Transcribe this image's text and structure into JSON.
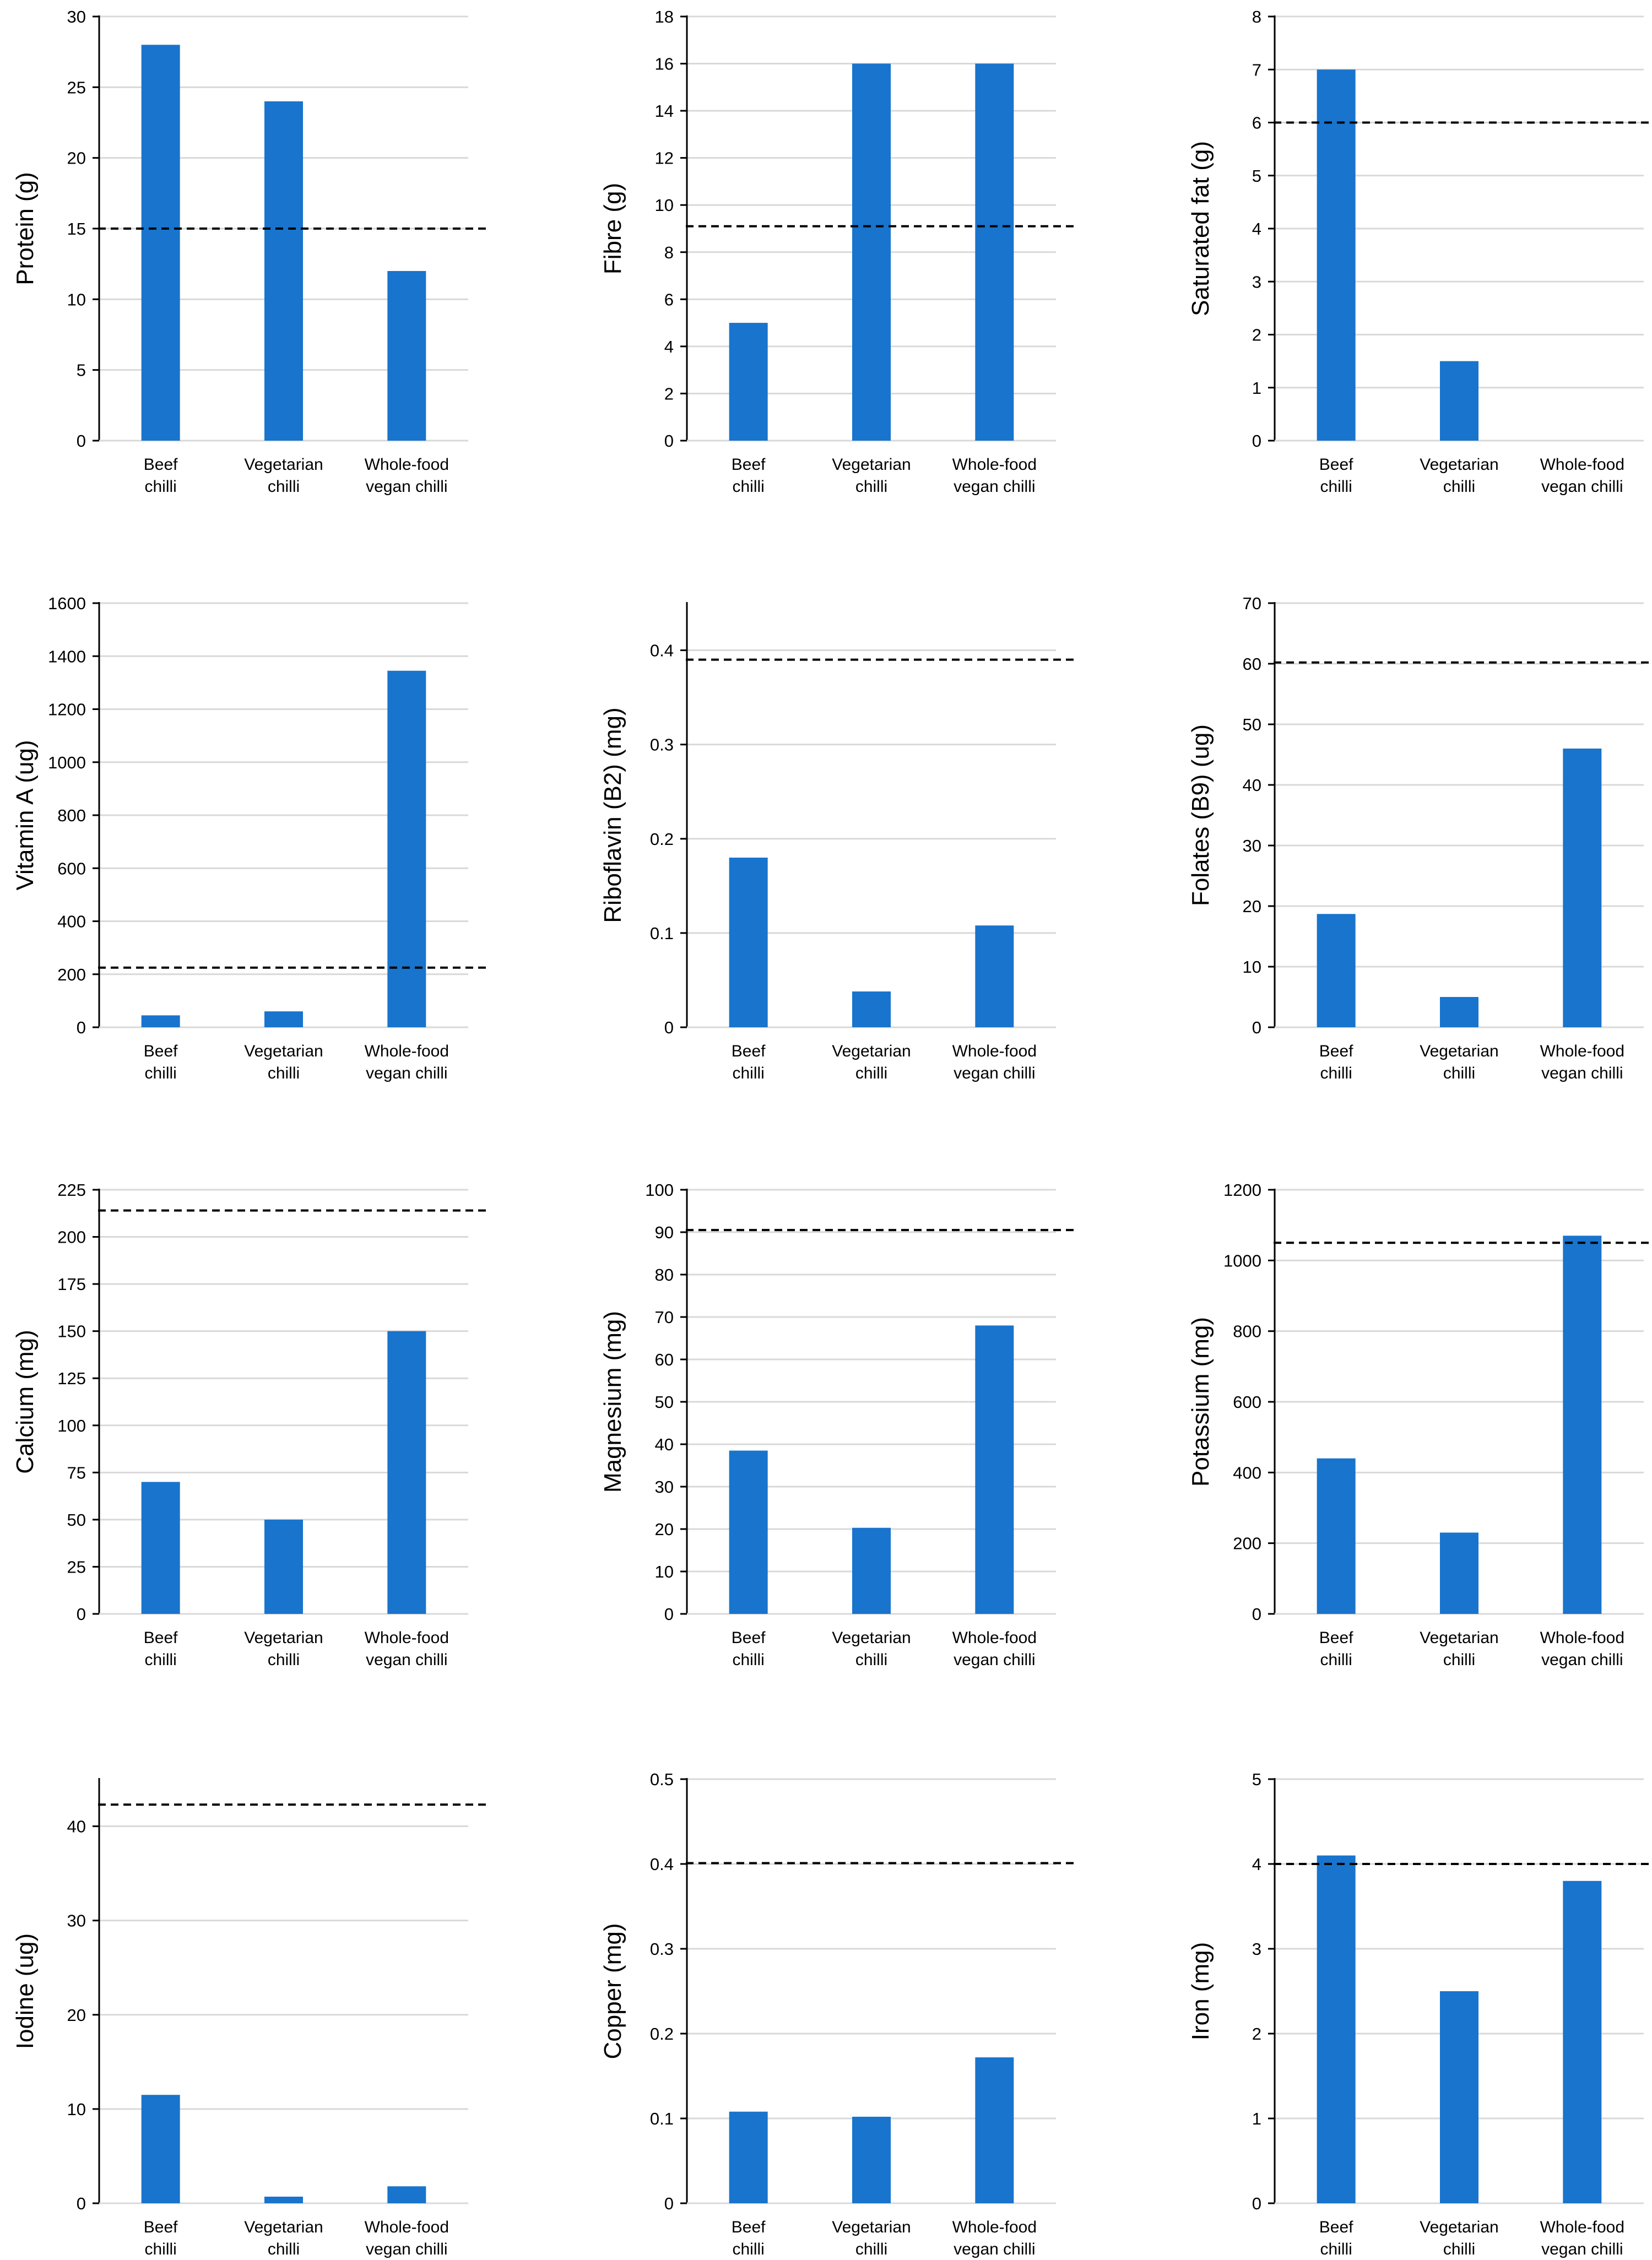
{
  "series_color": "#1874CD",
  "chart_data": [
    {
      "type": "bar",
      "ylabel": "Protein (g)",
      "categories": [
        [
          "Beef",
          "chilli"
        ],
        [
          "Vegetarian",
          "chilli"
        ],
        [
          "Whole-food",
          "vegan chilli"
        ]
      ],
      "values": [
        28,
        24,
        12
      ],
      "ylim": [
        0,
        30
      ],
      "yticks": [
        0,
        5,
        10,
        15,
        20,
        25,
        30
      ],
      "reference": 15
    },
    {
      "type": "bar",
      "ylabel": "Fibre (g)",
      "categories": [
        [
          "Beef",
          "chilli"
        ],
        [
          "Vegetarian",
          "chilli"
        ],
        [
          "Whole-food",
          "vegan chilli"
        ]
      ],
      "values": [
        5,
        16,
        16
      ],
      "ylim": [
        0,
        18
      ],
      "yticks": [
        0,
        2,
        4,
        6,
        8,
        10,
        12,
        14,
        16,
        18
      ],
      "reference": 9.1
    },
    {
      "type": "bar",
      "ylabel": "Saturated fat (g)",
      "categories": [
        [
          "Beef",
          "chilli"
        ],
        [
          "Vegetarian",
          "chilli"
        ],
        [
          "Whole-food",
          "vegan chilli"
        ]
      ],
      "values": [
        7,
        1.5,
        0
      ],
      "ylim": [
        0,
        8
      ],
      "yticks": [
        0,
        1,
        2,
        3,
        4,
        5,
        6,
        7,
        8
      ],
      "reference": 6
    },
    {
      "type": "bar",
      "ylabel": "Vitamin A (ug)",
      "categories": [
        [
          "Beef",
          "chilli"
        ],
        [
          "Vegetarian",
          "chilli"
        ],
        [
          "Whole-food",
          "vegan chilli"
        ]
      ],
      "values": [
        45,
        60,
        1345
      ],
      "ylim": [
        0,
        1600
      ],
      "yticks": [
        0,
        200,
        400,
        600,
        800,
        1000,
        1200,
        1400,
        1600
      ],
      "reference": 225
    },
    {
      "type": "bar",
      "ylabel": "Riboflavin (B2) (mg)",
      "categories": [
        [
          "Beef",
          "chilli"
        ],
        [
          "Vegetarian",
          "chilli"
        ],
        [
          "Whole-food",
          "vegan chilli"
        ]
      ],
      "values": [
        0.18,
        0.038,
        0.108
      ],
      "ylim": [
        0,
        0.45
      ],
      "yticks": [
        0,
        0.1,
        0.2,
        0.3,
        0.4
      ],
      "reference": 0.39
    },
    {
      "type": "bar",
      "ylabel": "Folates (B9)  (ug)",
      "categories": [
        [
          "Beef",
          "chilli"
        ],
        [
          "Vegetarian",
          "chilli"
        ],
        [
          "Whole-food",
          "vegan chilli"
        ]
      ],
      "values": [
        18.7,
        5,
        46
      ],
      "ylim": [
        0,
        70
      ],
      "yticks": [
        0,
        10,
        20,
        30,
        40,
        50,
        60,
        70
      ],
      "reference": 60.2
    },
    {
      "type": "bar",
      "ylabel": "Calcium (mg)",
      "categories": [
        [
          "Beef",
          "chilli"
        ],
        [
          "Vegetarian",
          "chilli"
        ],
        [
          "Whole-food",
          "vegan chilli"
        ]
      ],
      "values": [
        70,
        50,
        150
      ],
      "ylim": [
        0,
        225
      ],
      "yticks": [
        0,
        25,
        50,
        75,
        100,
        125,
        150,
        175,
        200,
        225
      ],
      "reference": 214
    },
    {
      "type": "bar",
      "ylabel": "Magnesium (mg)",
      "categories": [
        [
          "Beef",
          "chilli"
        ],
        [
          "Vegetarian",
          "chilli"
        ],
        [
          "Whole-food",
          "vegan chilli"
        ]
      ],
      "values": [
        38.5,
        20.3,
        68
      ],
      "ylim": [
        0,
        100
      ],
      "yticks": [
        0,
        10,
        20,
        30,
        40,
        50,
        60,
        70,
        80,
        90,
        100
      ],
      "reference": 90.5
    },
    {
      "type": "bar",
      "ylabel": "Potassium (mg)",
      "categories": [
        [
          "Beef",
          "chilli"
        ],
        [
          "Vegetarian",
          "chilli"
        ],
        [
          "Whole-food",
          "vegan chilli"
        ]
      ],
      "values": [
        440,
        230,
        1070
      ],
      "ylim": [
        0,
        1200
      ],
      "yticks": [
        0,
        200,
        400,
        600,
        800,
        1000,
        1200
      ],
      "reference": 1050
    },
    {
      "type": "bar",
      "ylabel": "Iodine (ug)",
      "categories": [
        [
          "Beef",
          "chilli"
        ],
        [
          "Vegetarian",
          "chilli"
        ],
        [
          "Whole-food",
          "vegan chilli"
        ]
      ],
      "values": [
        11.5,
        0.7,
        1.8
      ],
      "ylim": [
        0,
        45
      ],
      "yticks": [
        0,
        10,
        20,
        30,
        40
      ],
      "reference": 42.3
    },
    {
      "type": "bar",
      "ylabel": "Copper (mg)",
      "categories": [
        [
          "Beef",
          "chilli"
        ],
        [
          "Vegetarian",
          "chilli"
        ],
        [
          "Whole-food",
          "vegan chilli"
        ]
      ],
      "values": [
        0.108,
        0.102,
        0.172
      ],
      "ylim": [
        0,
        0.5
      ],
      "yticks": [
        0,
        0.1,
        0.2,
        0.3,
        0.4,
        0.5
      ],
      "reference": 0.401
    },
    {
      "type": "bar",
      "ylabel": "Iron (mg)",
      "categories": [
        [
          "Beef",
          "chilli"
        ],
        [
          "Vegetarian",
          "chilli"
        ],
        [
          "Whole-food",
          "vegan chilli"
        ]
      ],
      "values": [
        4.1,
        2.5,
        3.8
      ],
      "ylim": [
        0,
        5
      ],
      "yticks": [
        0,
        1,
        2,
        3,
        4,
        5
      ],
      "reference": 4
    }
  ]
}
